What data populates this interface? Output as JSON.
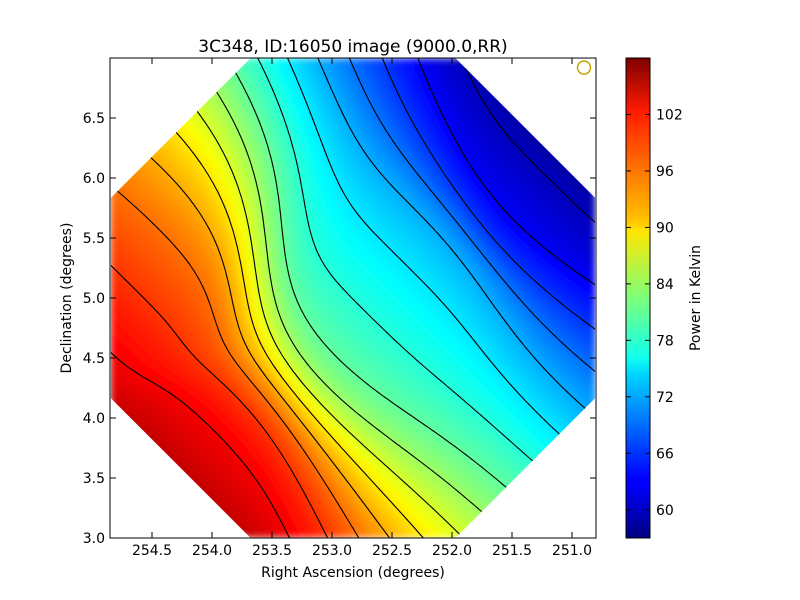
{
  "chart_data": {
    "type": "heatmap",
    "title": "3C348, ID:16050 image (9000.0,RR)",
    "xlabel": "Right Ascension (degrees)",
    "ylabel": "Declination (degrees)",
    "colorbar_label": "Power in Kelvin",
    "xlim": [
      254.85,
      250.8
    ],
    "ylim": [
      3.0,
      7.0
    ],
    "x_ticks": [
      254.5,
      254.0,
      253.5,
      253.0,
      252.5,
      252.0,
      251.5,
      251.0
    ],
    "x_tick_labels": [
      "254.5",
      "254.0",
      "253.5",
      "253.0",
      "252.5",
      "252.0",
      "251.5",
      "251.0"
    ],
    "y_ticks": [
      3.0,
      3.5,
      4.0,
      4.5,
      5.0,
      5.5,
      6.0,
      6.5
    ],
    "y_tick_labels": [
      "3.0",
      "3.5",
      "4.0",
      "4.5",
      "5.0",
      "5.5",
      "6.0",
      "6.5"
    ],
    "colorbar_range": [
      57,
      108
    ],
    "colorbar_ticks": [
      60,
      66,
      72,
      78,
      84,
      90,
      96,
      102
    ],
    "colorbar_tick_labels": [
      "60",
      "66",
      "72",
      "78",
      "84",
      "90",
      "96",
      "102"
    ],
    "colormap": "jet",
    "field_shape": "octagon",
    "contours": true,
    "grid": false,
    "value_extremes": [
      {
        "ra": 254.3,
        "dec": 3.6,
        "value": 106
      },
      {
        "ra": 254.75,
        "dec": 5.1,
        "value": 104
      },
      {
        "ra": 251.1,
        "dec": 6.1,
        "value": 57
      },
      {
        "ra": 252.6,
        "dec": 5.0,
        "value": 73
      }
    ],
    "beam_marker": {
      "ra": 250.9,
      "dec": 6.92,
      "color": "#c8a000"
    }
  }
}
